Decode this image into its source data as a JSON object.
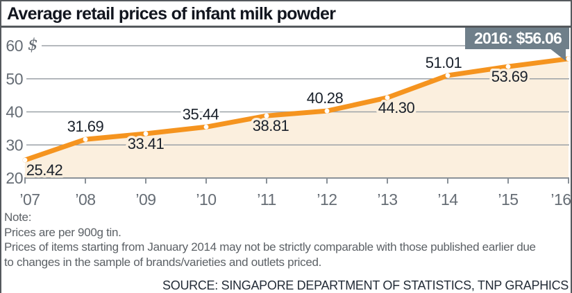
{
  "title": "Average retail prices of infant milk powder",
  "callout": {
    "text": "2016: $56.06"
  },
  "note": {
    "heading": "Note:",
    "lines": [
      "Prices are per 900g tin.",
      "Prices of items starting from January 2014 may not be strictly comparable with those published earlier due",
      "to changes in the sample of brands/varieties and outlets priced."
    ]
  },
  "source": "SOURCE: SINGAPORE DEPARTMENT OF STATISTICS, TNP GRAPHICS",
  "colors": {
    "line": "#f5941f",
    "area_fill": "#fbefde",
    "marker": "#ffffff",
    "callout_bg": "#6f7f8a",
    "callout_text": "#ffffff",
    "grid": "#9ba1a7",
    "axis": "#8a9198",
    "title_text": "#12161f",
    "value_text": "#1a212b",
    "axis_text": "#666d75",
    "note_text": "#5c6166",
    "source_text": "#232c37",
    "frame_border": "#55595d"
  },
  "chart_data": {
    "type": "line",
    "title": "Average retail prices of infant milk powder",
    "x": [
      "’07",
      "’08",
      "’09",
      "’10",
      "’11",
      "’12",
      "’13",
      "’14",
      "’15",
      "’16"
    ],
    "values": [
      25.42,
      31.69,
      33.41,
      35.44,
      38.81,
      40.28,
      44.3,
      51.01,
      53.69,
      56.06
    ],
    "ylabel": "$",
    "xlabel": "",
    "ylim": [
      20,
      60
    ],
    "yticks": [
      20,
      30,
      40,
      50,
      60
    ],
    "grid": true,
    "legend": false,
    "marker": "circle",
    "area_filled": true,
    "highlight": {
      "x": "’16",
      "value": 56.06,
      "label": "2016: $56.06"
    },
    "label_layout": [
      {
        "pos": "below",
        "dx": 28
      },
      {
        "pos": "above",
        "dx": 0
      },
      {
        "pos": "below",
        "dx": 0
      },
      {
        "pos": "above",
        "dx": -8
      },
      {
        "pos": "below",
        "dx": 6
      },
      {
        "pos": "above",
        "dx": -3
      },
      {
        "pos": "below",
        "dx": 13
      },
      {
        "pos": "above",
        "dx": -6
      },
      {
        "pos": "below",
        "dx": 2
      },
      null
    ]
  }
}
